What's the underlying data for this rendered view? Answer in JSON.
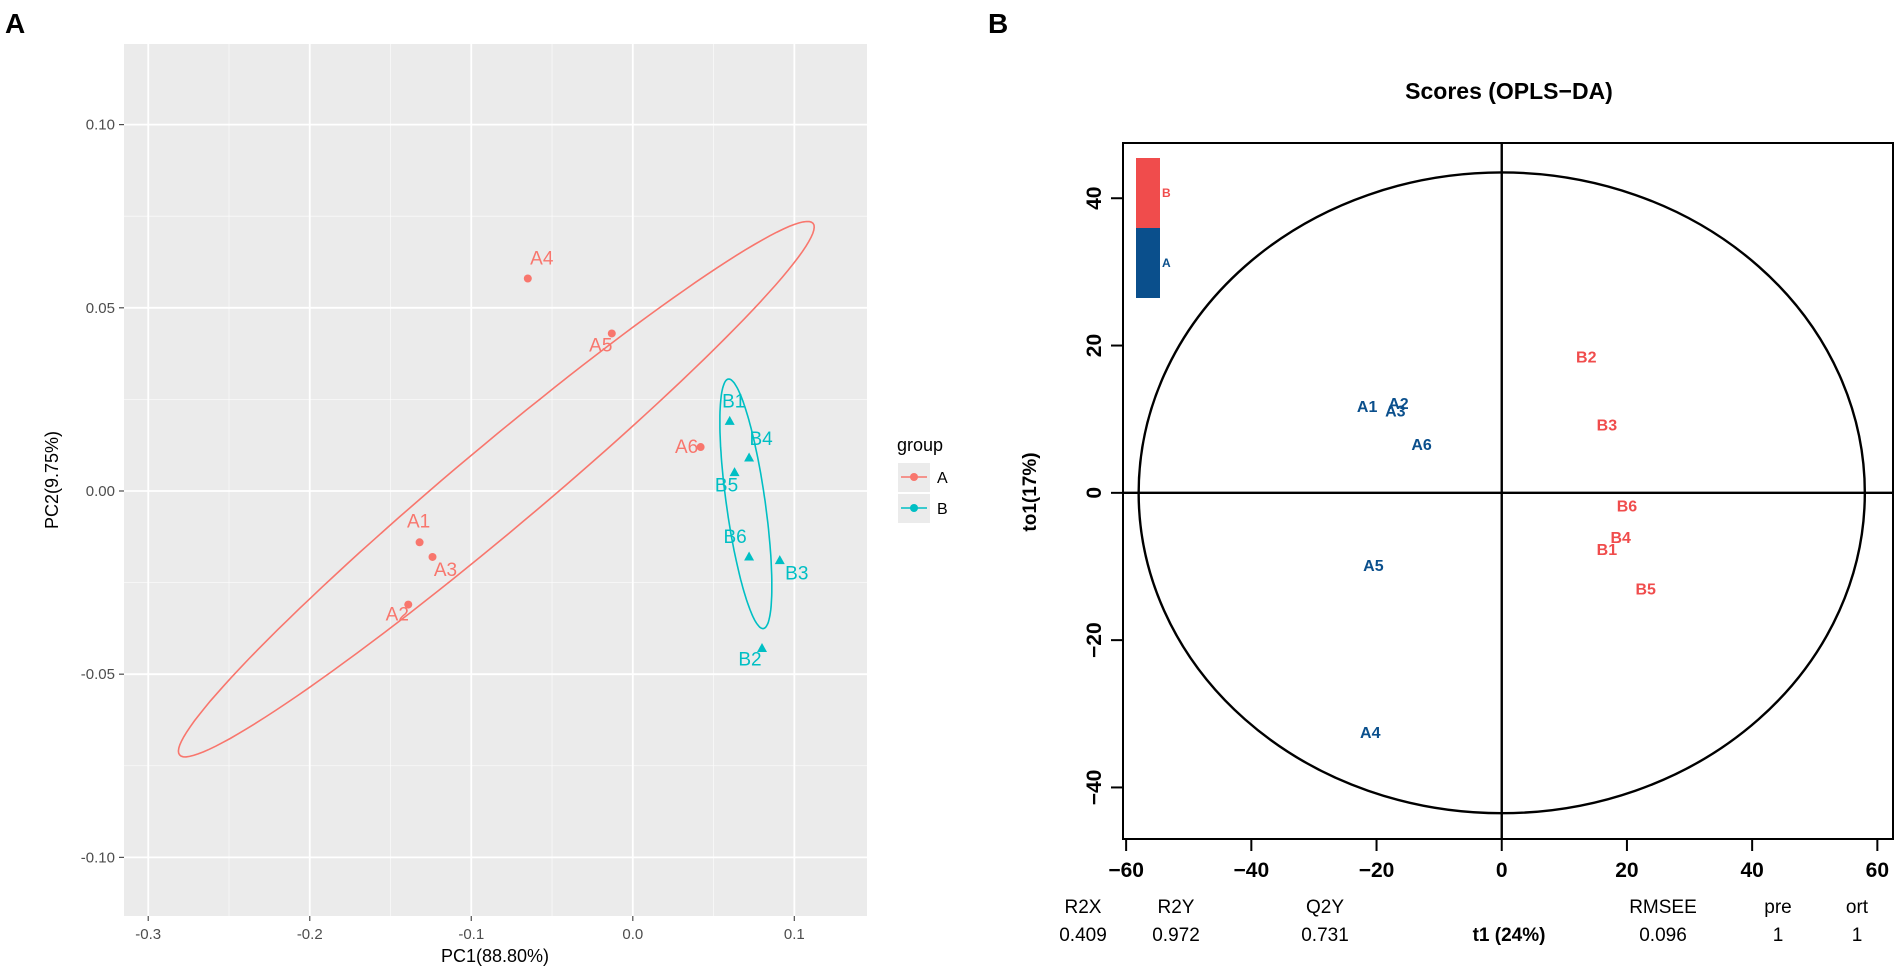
{
  "panel_labels": {
    "a": "A",
    "b": "B"
  },
  "colors": {
    "groupA": "#f8766d",
    "groupB": "#00bfc4",
    "panelBg": "#ebebeb",
    "grid": "#ffffff",
    "tick": "#4d4d4d",
    "opls_red": "#f04c4c",
    "opls_blue": "#0a4f8c",
    "black": "#000000"
  },
  "chart_data": [
    {
      "id": "pca",
      "type": "scatter",
      "xlabel": "PC1(88.80%)",
      "ylabel": "PC2(9.75%)",
      "xlim": [
        -0.315,
        0.145
      ],
      "ylim": [
        -0.116,
        0.122
      ],
      "xticks": [
        -0.3,
        -0.2,
        -0.1,
        0.0,
        0.1
      ],
      "xtick_labels": [
        "-0.3",
        "-0.2",
        "-0.1",
        "0.0",
        "0.1"
      ],
      "yticks": [
        -0.1,
        -0.05,
        0.0,
        0.05,
        0.1
      ],
      "ytick_labels": [
        "-0.10",
        "-0.05",
        "0.00",
        "0.05",
        "0.10"
      ],
      "legend": {
        "title": "group",
        "placement": "right",
        "entries": [
          "A",
          "B"
        ]
      },
      "series": [
        {
          "name": "A",
          "marker": "circle",
          "points": [
            {
              "label": "A1",
              "x": -0.132,
              "y": -0.014
            },
            {
              "label": "A2",
              "x": -0.139,
              "y": -0.031
            },
            {
              "label": "A3",
              "x": -0.124,
              "y": -0.018
            },
            {
              "label": "A4",
              "x": -0.065,
              "y": 0.058
            },
            {
              "label": "A5",
              "x": -0.013,
              "y": 0.043
            },
            {
              "label": "A6",
              "x": 0.042,
              "y": 0.012
            }
          ],
          "ellipse": {
            "cx": -0.0845,
            "cy": 0.0005,
            "rx": 0.256,
            "ry": 0.026,
            "angle": 40
          }
        },
        {
          "name": "B",
          "marker": "triangle",
          "points": [
            {
              "label": "B1",
              "x": 0.06,
              "y": 0.019
            },
            {
              "label": "B2",
              "x": 0.08,
              "y": -0.043
            },
            {
              "label": "B3",
              "x": 0.091,
              "y": -0.019
            },
            {
              "label": "B4",
              "x": 0.072,
              "y": 0.009
            },
            {
              "label": "B5",
              "x": 0.063,
              "y": 0.005
            },
            {
              "label": "B6",
              "x": 0.072,
              "y": -0.018
            }
          ],
          "ellipse": {
            "cx": 0.07,
            "cy": -0.0035,
            "rx": 0.078,
            "ry": 0.012,
            "angle": -82
          }
        }
      ]
    },
    {
      "id": "oplsda",
      "type": "scatter",
      "title": "Scores (OPLS−DA)",
      "xlabel": "t1 (24%)",
      "ylabel": "to1(17%)",
      "xlim": [
        -60.5,
        62.5
      ],
      "ylim": [
        -47,
        47.5
      ],
      "xticks": [
        -60,
        -40,
        -20,
        0,
        20,
        40,
        60
      ],
      "xtick_labels": [
        "−60",
        "−40",
        "−20",
        "0",
        "20",
        "40",
        "60"
      ],
      "yticks": [
        -40,
        -20,
        0,
        20,
        40
      ],
      "ytick_labels": [
        "−40",
        "−20",
        "0",
        "20",
        "40"
      ],
      "legend": {
        "placement": "top-left",
        "entries": [
          "B",
          "A"
        ]
      },
      "ellipse": {
        "cx": 0,
        "cy": 0,
        "rx": 58,
        "ry": 43.5
      },
      "series": [
        {
          "name": "A",
          "points": [
            {
              "label": "A1",
              "x": -21.5,
              "y": 11.8
            },
            {
              "label": "A2",
              "x": -16.5,
              "y": 12.2
            },
            {
              "label": "A3",
              "x": -17,
              "y": 11.2
            },
            {
              "label": "A4",
              "x": -21,
              "y": -32.5
            },
            {
              "label": "A5",
              "x": -20.5,
              "y": -9.8
            },
            {
              "label": "A6",
              "x": -12.8,
              "y": 6.6
            }
          ]
        },
        {
          "name": "B",
          "points": [
            {
              "label": "B1",
              "x": 16.8,
              "y": -7.6
            },
            {
              "label": "B2",
              "x": 13.5,
              "y": 18.5
            },
            {
              "label": "B3",
              "x": 16.8,
              "y": 9.3
            },
            {
              "label": "B4",
              "x": 19,
              "y": -6
            },
            {
              "label": "B5",
              "x": 23,
              "y": -13
            },
            {
              "label": "B6",
              "x": 20,
              "y": -1.7
            }
          ]
        }
      ],
      "stats": [
        {
          "label": "R2X",
          "value": "0.409"
        },
        {
          "label": "R2Y",
          "value": "0.972"
        },
        {
          "label": "Q2Y",
          "value": "0.731"
        },
        {
          "label": "RMSEE",
          "value": "0.096"
        },
        {
          "label": "pre",
          "value": "1"
        },
        {
          "label": "ort",
          "value": "1"
        }
      ]
    }
  ]
}
